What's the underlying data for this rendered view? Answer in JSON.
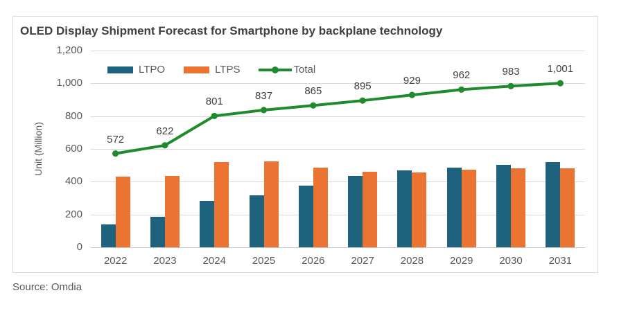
{
  "source": "Source: Omdia",
  "colors": {
    "ltpo": "#1f627e",
    "ltps": "#ec7432",
    "total": "#1f8b2c",
    "grid": "#d9d9d9",
    "axis_line": "#c9c9c9",
    "axis_text": "#595959",
    "title_text": "#404040",
    "data_label_text": "#3f3f3f",
    "card_border": "#d9d9d9"
  },
  "chart_data": {
    "type": "bar+line combo",
    "title": "OLED Display Shipment Forecast for Smartphone by backplane technology",
    "xlabel": "",
    "ylabel": "Unit (Million)",
    "categories": [
      "2022",
      "2023",
      "2024",
      "2025",
      "2026",
      "2027",
      "2028",
      "2029",
      "2030",
      "2031"
    ],
    "series": [
      {
        "name": "LTPO",
        "type": "bar",
        "color": "#1f627e",
        "values": [
          140,
          188,
          283,
          315,
          378,
          436,
          471,
          488,
          503,
          521
        ]
      },
      {
        "name": "LTPS",
        "type": "bar",
        "color": "#ec7432",
        "values": [
          432,
          434,
          518,
          522,
          487,
          459,
          458,
          474,
          480,
          480
        ]
      },
      {
        "name": "Total",
        "type": "line",
        "color": "#1f8b2c",
        "values": [
          572,
          622,
          801,
          837,
          865,
          895,
          929,
          962,
          983,
          1001
        ],
        "labels": [
          "572",
          "622",
          "801",
          "837",
          "865",
          "895",
          "929",
          "962",
          "983",
          "1,001"
        ]
      }
    ],
    "ylim": [
      0,
      1200
    ],
    "ytick_step": 200,
    "ytick_labels": [
      "0",
      "200",
      "400",
      "600",
      "800",
      "1,000",
      "1,200"
    ],
    "grid": true,
    "legend_position": "top-left inside plot"
  }
}
